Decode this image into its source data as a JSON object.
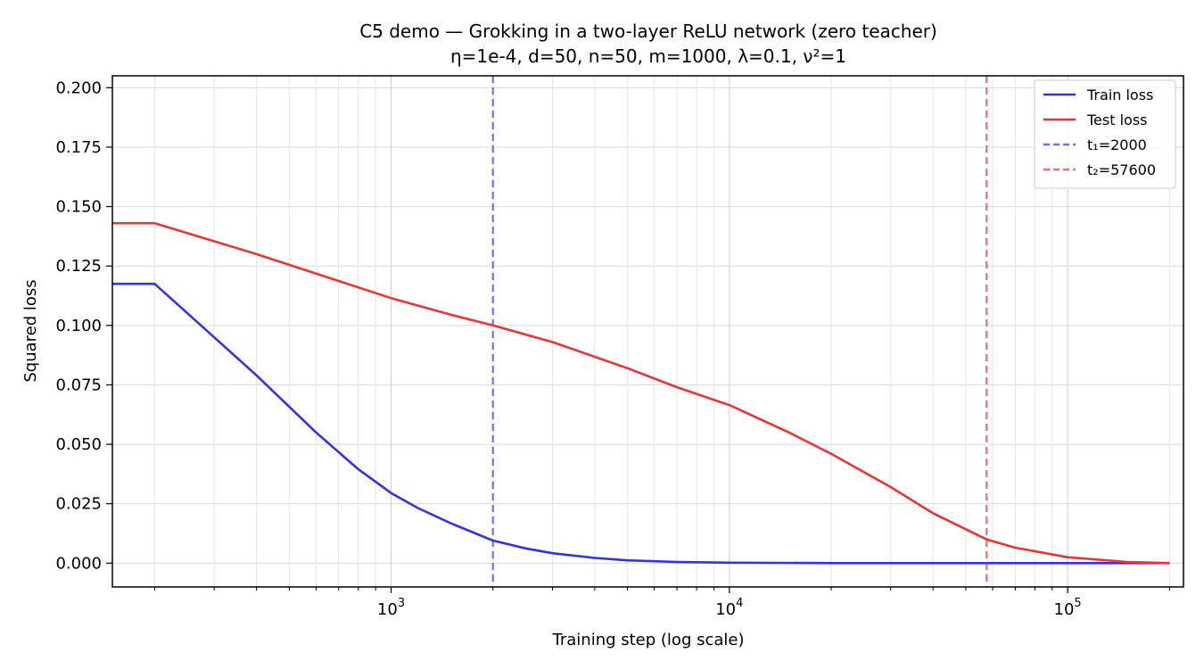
{
  "chart_data": {
    "type": "line",
    "title": "C5 demo — Grokking in a two-layer ReLU network (zero teacher)",
    "subtitle": "η=1e-4, d=50, n=50, m=1000, λ=0.1, ν²=1",
    "xlabel": "Training step (log scale)",
    "ylabel": "Squared loss",
    "x_scale": "log",
    "xlim": [
      150,
      2000000
    ],
    "ylim": [
      -0.01,
      0.205
    ],
    "grid": true,
    "legend_position": "top-right",
    "y_ticks": [
      {
        "value": 0.0,
        "label": "0.000"
      },
      {
        "value": 0.025,
        "label": "0.025"
      },
      {
        "value": 0.05,
        "label": "0.050"
      },
      {
        "value": 0.075,
        "label": "0.075"
      },
      {
        "value": 0.1,
        "label": "0.100"
      },
      {
        "value": 0.125,
        "label": "0.125"
      },
      {
        "value": 0.15,
        "label": "0.150"
      },
      {
        "value": 0.175,
        "label": "0.175"
      },
      {
        "value": 0.2,
        "label": "0.200"
      }
    ],
    "x_ticks": [
      {
        "value": 1000,
        "base": "10",
        "exp": "3"
      },
      {
        "value": 10000,
        "base": "10",
        "exp": "4"
      },
      {
        "value": 100000,
        "base": "10",
        "exp": "5"
      }
    ],
    "series": [
      {
        "name": "Train loss",
        "color": "#3333e6",
        "x": [
          100,
          200,
          300,
          400,
          600,
          800,
          1000,
          1200,
          1500,
          2000,
          2500,
          3000,
          4000,
          5000,
          7000,
          10000,
          20000,
          50000,
          100000,
          200000
        ],
        "y": [
          0.1175,
          0.1175,
          0.095,
          0.079,
          0.055,
          0.0395,
          0.0295,
          0.0232,
          0.0168,
          0.0095,
          0.0062,
          0.0042,
          0.0022,
          0.0012,
          0.0005,
          0.0002,
          0.0,
          0.0,
          0.0,
          0.0
        ]
      },
      {
        "name": "Test loss",
        "color": "#ee3333",
        "x": [
          100,
          200,
          400,
          800,
          1000,
          1500,
          2000,
          3000,
          5000,
          7000,
          10000,
          15000,
          20000,
          30000,
          40000,
          57600,
          70000,
          100000,
          150000,
          200000
        ],
        "y": [
          0.143,
          0.143,
          0.13,
          0.116,
          0.1115,
          0.1045,
          0.1,
          0.093,
          0.082,
          0.074,
          0.0665,
          0.055,
          0.046,
          0.032,
          0.021,
          0.01,
          0.0065,
          0.0025,
          0.0005,
          0.0
        ]
      }
    ],
    "vlines": [
      {
        "name": "t₁=2000",
        "x": 2000,
        "color": "#7070f0"
      },
      {
        "name": "t₂=57600",
        "x": 57600,
        "color": "#f07070"
      }
    ]
  }
}
